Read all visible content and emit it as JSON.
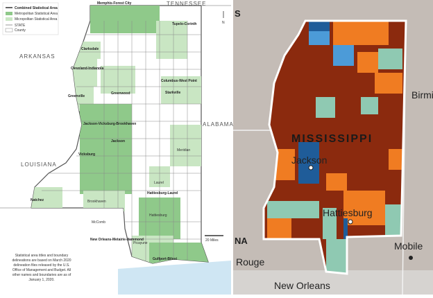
{
  "left_map": {
    "legend": [
      "Combined Statistical Area",
      "Metropolitan Statistical Area",
      "Micropolitan Statistical Area",
      "STATE",
      "County"
    ],
    "states": [
      "TENNESSEE",
      "ARKANSAS",
      "ALABAMA",
      "LOUISIANA"
    ],
    "areas": [
      "Memphis-Forest City",
      "Tupelo-Corinth",
      "Clarksdale",
      "Cleveland-Indianola",
      "Greenville",
      "Greenwood",
      "Columbus-West Point",
      "Starkville",
      "Jackson-Vicksburg-Brookhaven",
      "Jackson",
      "Vicksburg",
      "Meridian",
      "Hattiesburg-Laurel",
      "Laurel",
      "Hattiesburg",
      "Natchez",
      "McComb",
      "Brookhaven",
      "Picayune",
      "New Orleans-Metairie-Hammond",
      "Gulfport-Biloxi"
    ],
    "scale": "20 Miles",
    "north": "N",
    "note": [
      "Statistical area titles and boundary",
      "delineations are based on March 2020",
      "delineation files released by the U.S.",
      "Office of Management and Budget. All",
      "other names and boundaries are as of",
      "January 1, 2020."
    ]
  },
  "right_map": {
    "state": "MISSISSIPPI",
    "cities": [
      "Jackson",
      "Hattiesburg",
      "Birmi",
      "Mobile",
      "New Orleans",
      "Rouge",
      "NA",
      "S"
    ]
  }
}
